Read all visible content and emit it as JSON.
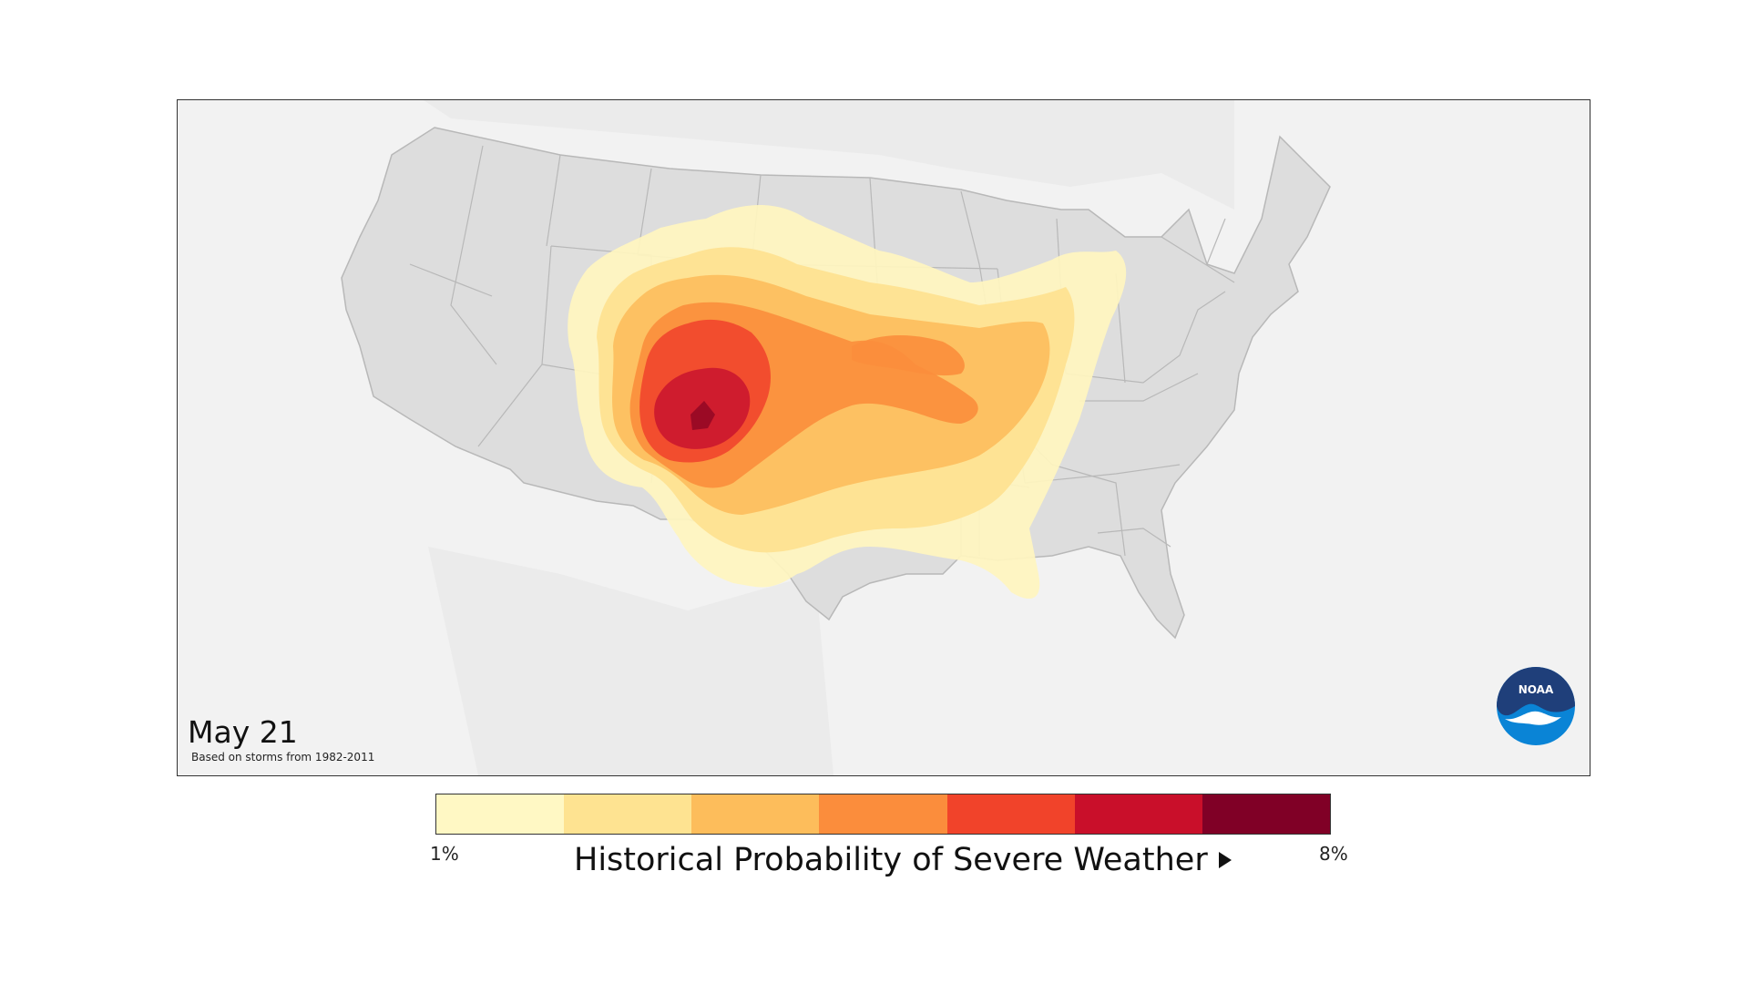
{
  "map": {
    "date": "May 21",
    "subtitle": "Based on storms from 1982-2011",
    "logo_text": "NOAA",
    "land_color": "#dddddd",
    "ocean_color": "#f2f2f2",
    "state_border_color": "#b8b8b8",
    "contour_levels": [
      {
        "level": 1,
        "color": "#fff5bf"
      },
      {
        "level": 2,
        "color": "#fee191"
      },
      {
        "level": 3,
        "color": "#fdbf5f"
      },
      {
        "level": 4,
        "color": "#fb8e3c"
      },
      {
        "level": 5,
        "color": "#f1462c"
      },
      {
        "level": 6,
        "color": "#c9142e"
      },
      {
        "level": 7,
        "color": "#7f0121"
      }
    ]
  },
  "legend": {
    "min_label": "1%",
    "max_label": "8%",
    "title": "Historical Probability of Severe Weather",
    "colors": [
      "#fff8c4",
      "#fee391",
      "#fdbd5b",
      "#fb8d3c",
      "#f1432a",
      "#c90f2a",
      "#800026"
    ]
  }
}
